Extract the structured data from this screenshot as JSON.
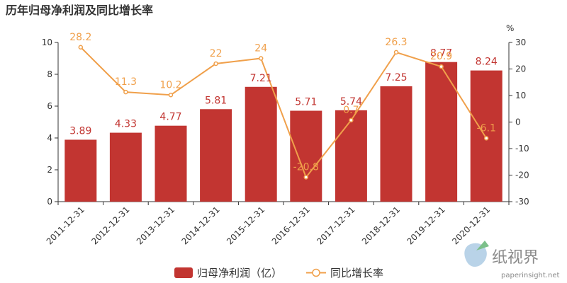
{
  "chart_data": {
    "type": "bar",
    "title": "历年归母净利润及同比增长率",
    "categories": [
      "2011-12-31",
      "2012-12-31",
      "2013-12-31",
      "2014-12-31",
      "2015-12-31",
      "2016-12-31",
      "2017-12-31",
      "2018-12-31",
      "2019-12-31",
      "2020-12-31"
    ],
    "series": [
      {
        "name": "归母净利润（亿）",
        "type": "bar",
        "axis": "left",
        "color": "#c23531",
        "values": [
          3.89,
          4.33,
          4.77,
          5.81,
          7.21,
          5.71,
          5.74,
          7.25,
          8.77,
          8.24
        ],
        "labels": [
          "3.89",
          "4.33",
          "4.77",
          "5.81",
          "7.21",
          "5.71",
          "5.74",
          "7.25",
          "8.77",
          "8.24"
        ]
      },
      {
        "name": "同比增长率",
        "type": "line",
        "axis": "right",
        "color": "#f0a04b",
        "values": [
          28.2,
          11.3,
          10.2,
          22,
          24,
          -20.8,
          0.7,
          26.3,
          20.9,
          -6.1
        ],
        "labels": [
          "28.2",
          "11.3",
          "10.2",
          "22",
          "24",
          "-20.8",
          "0.7",
          "26.3",
          "20.9",
          "-6.1"
        ]
      }
    ],
    "y_left": {
      "min": 0,
      "max": 10,
      "ticks": [
        "0",
        "2",
        "4",
        "6",
        "8",
        "10"
      ]
    },
    "y_right": {
      "min": -30,
      "max": 30,
      "unit": "%",
      "ticks": [
        "-30",
        "-20",
        "-10",
        "0",
        "10",
        "20",
        "30"
      ]
    },
    "grid": false,
    "legend_position": "bottom"
  },
  "watermark": {
    "text": "纸视界",
    "url": "paperinsight.net"
  }
}
